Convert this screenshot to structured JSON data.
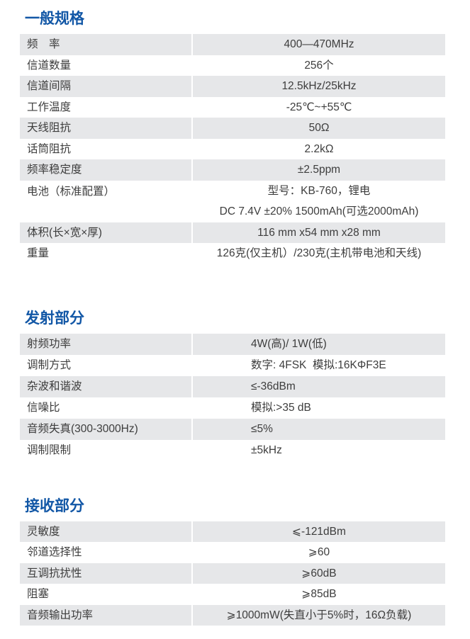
{
  "colors": {
    "section_title_blue": "#1257a6",
    "row_stripe_gray": "#e6e7e9",
    "text": "#3d3d3d"
  },
  "sections": [
    {
      "id": "general",
      "title": "一般规格",
      "rows": [
        {
          "label": "频　率",
          "value": "400—470MHz"
        },
        {
          "label": "信道数量",
          "value": "256个"
        },
        {
          "label": "信道间隔",
          "value": "12.5kHz/25kHz"
        },
        {
          "label": "工作温度",
          "value": "-25℃~+55℃"
        },
        {
          "label": "天线阻抗",
          "value": "50Ω"
        },
        {
          "label": "话筒阻抗",
          "value": "2.2kΩ"
        },
        {
          "label": "频率稳定度",
          "value": "±2.5ppm"
        },
        {
          "label": "电池（标准配置）",
          "value_lines": [
            "型号：KB-760，锂电",
            "DC 7.4V ±20% 1500mAh(可选2000mAh)"
          ]
        },
        {
          "label": "体积(长×宽×厚)",
          "value": "116 mm x54 mm x28 mm"
        },
        {
          "label": "重量",
          "value": "126克(仅主机）/230克(主机带电池和天线)"
        }
      ]
    },
    {
      "id": "transmit",
      "title": "发射部分",
      "rows": [
        {
          "label": "射频功率",
          "value": "4W(高)/ 1W(低)"
        },
        {
          "label": "调制方式",
          "value": "数字: 4FSK  模拟:16KΦF3E"
        },
        {
          "label": "杂波和谐波",
          "value": "≤-36dBm"
        },
        {
          "label": "信噪比",
          "value": "模拟:>35 dB"
        },
        {
          "label": "音频失真(300-3000Hz)",
          "value": "≤5%"
        },
        {
          "label": "调制限制",
          "value": "±5kHz"
        }
      ]
    },
    {
      "id": "receive",
      "title": "接收部分",
      "rows": [
        {
          "label": "灵敏度",
          "value": "⩽-121dBm"
        },
        {
          "label": "邻道选择性",
          "value": "⩾60"
        },
        {
          "label": "互调抗扰性",
          "value": "⩾60dB"
        },
        {
          "label": "阻塞",
          "value": "⩾85dB"
        },
        {
          "label": "音频输出功率",
          "value": "⩾1000mW(失直小于5%时，16Ω负载)"
        }
      ]
    }
  ]
}
